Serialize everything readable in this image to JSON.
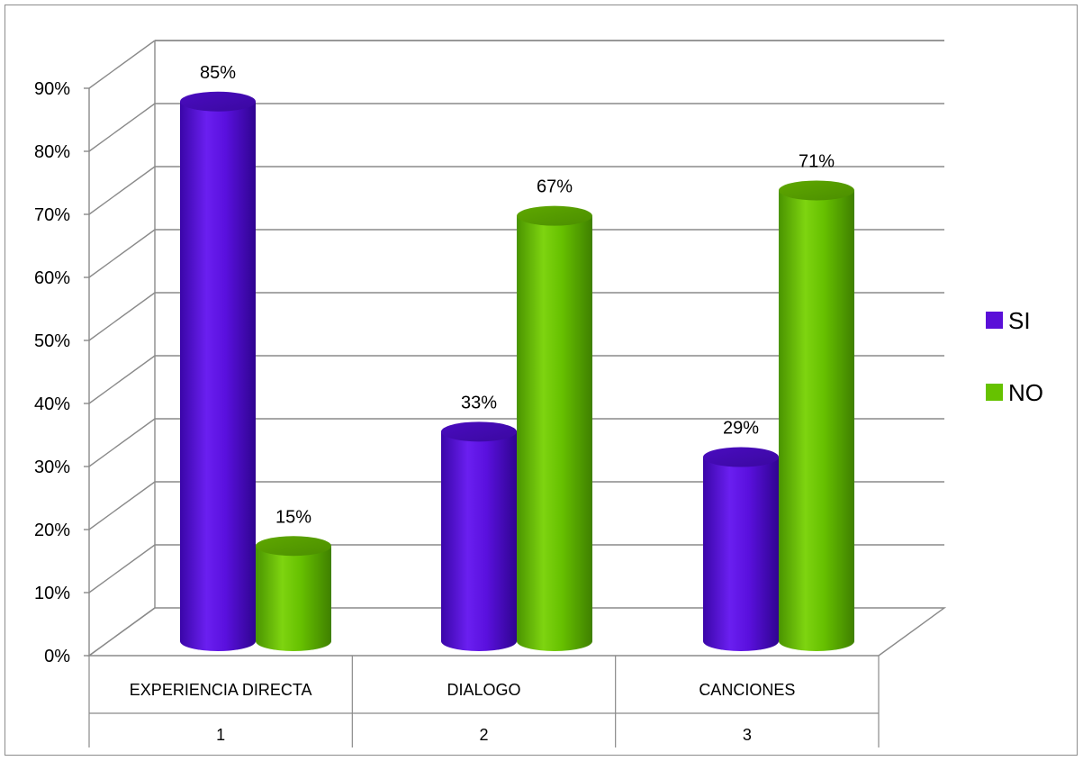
{
  "chart_data": {
    "type": "bar",
    "style": "3d-cylinder",
    "categories": [
      "EXPERIENCIA DIRECTA",
      "DIALOGO",
      "CANCIONES"
    ],
    "category_numbers": [
      "1",
      "2",
      "3"
    ],
    "series": [
      {
        "name": "SI",
        "values": [
          85,
          33,
          29
        ],
        "labels": [
          "85%",
          "33%",
          "29%"
        ],
        "color": "#5a0fd8"
      },
      {
        "name": "NO",
        "values": [
          15,
          67,
          71
        ],
        "labels": [
          "15%",
          "67%",
          "71%"
        ],
        "color": "#66c200"
      }
    ],
    "yticks": [
      "0%",
      "10%",
      "20%",
      "30%",
      "40%",
      "50%",
      "60%",
      "70%",
      "80%",
      "90%"
    ],
    "ylim": [
      0,
      90
    ],
    "grid": true,
    "legend": "right"
  }
}
